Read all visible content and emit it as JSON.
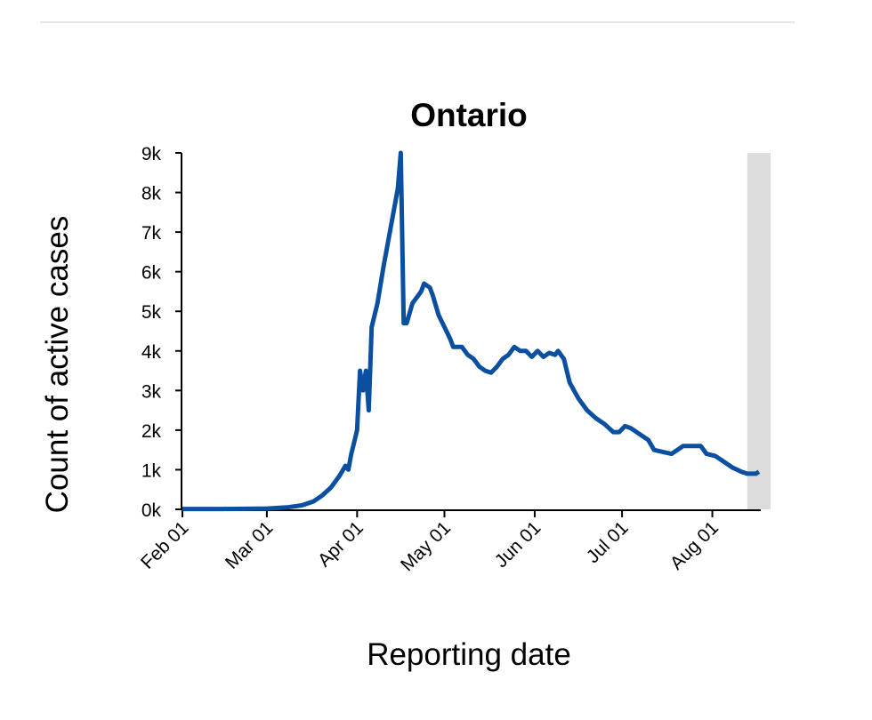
{
  "chart_data": {
    "type": "line",
    "title": "Ontario",
    "x_label": "Reporting date",
    "y_label": "Count of active cases",
    "x": [
      "Feb 01",
      "Feb 15",
      "Mar 01",
      "Mar 08",
      "Mar 13",
      "Mar 17",
      "Mar 20",
      "Mar 23",
      "Mar 26",
      "Mar 28",
      "Mar 29",
      "Mar 30",
      "Mar 31",
      "Apr 01",
      "Apr 02",
      "Apr 03",
      "Apr 04",
      "Apr 05",
      "Apr 06",
      "Apr 08",
      "Apr 10",
      "Apr 13",
      "Apr 15",
      "Apr 16",
      "Apr 17",
      "Apr 18",
      "Apr 20",
      "Apr 23",
      "Apr 24",
      "Apr 26",
      "Apr 27",
      "Apr 29",
      "May 01",
      "May 03",
      "May 04",
      "May 07",
      "May 09",
      "May 11",
      "May 13",
      "May 15",
      "May 17",
      "May 19",
      "May 21",
      "May 23",
      "May 25",
      "May 27",
      "May 29",
      "May 31",
      "Jun 02",
      "Jun 04",
      "Jun 06",
      "Jun 08",
      "Jun 09",
      "Jun 11",
      "Jun 13",
      "Jun 16",
      "Jun 19",
      "Jun 22",
      "Jun 25",
      "Jun 28",
      "Jun 30",
      "Jul 02",
      "Jul 04",
      "Jul 07",
      "Jul 10",
      "Jul 12",
      "Jul 15",
      "Jul 18",
      "Jul 20",
      "Jul 22",
      "Jul 25",
      "Jul 28",
      "Jul 30",
      "Aug 02",
      "Aug 05",
      "Aug 08",
      "Aug 11",
      "Aug 13",
      "Aug 16",
      "Aug 17"
    ],
    "series": [
      {
        "name": "Ontario",
        "color": "#0b4fa0",
        "values": [
          10,
          10,
          20,
          50,
          100,
          200,
          350,
          550,
          850,
          1100,
          1000,
          1400,
          1700,
          2000,
          3500,
          3000,
          3500,
          2500,
          4600,
          5200,
          6100,
          7300,
          8100,
          9000,
          4700,
          4700,
          5200,
          5500,
          5700,
          5600,
          5400,
          4900,
          4600,
          4300,
          4100,
          4100,
          3900,
          3800,
          3600,
          3500,
          3450,
          3600,
          3800,
          3900,
          4100,
          4000,
          4000,
          3850,
          4000,
          3850,
          3950,
          3900,
          4000,
          3800,
          3200,
          2800,
          2500,
          2300,
          2150,
          1950,
          1950,
          2100,
          2050,
          1900,
          1750,
          1500,
          1450,
          1400,
          1500,
          1600,
          1600,
          1600,
          1400,
          1350,
          1200,
          1050,
          950,
          900,
          900,
          950
        ]
      }
    ],
    "shaded_range": [
      "Aug 13",
      "Aug 21"
    ],
    "xlim": [
      "Feb 01",
      "Aug 21"
    ],
    "xticks": [
      "Feb 01",
      "Mar 01",
      "Apr 01",
      "May 01",
      "Jun 01",
      "Jul 01",
      "Aug 01"
    ],
    "ylim": [
      0,
      9000
    ],
    "yticks": [
      {
        "value": 0,
        "label": "0k"
      },
      {
        "value": 1000,
        "label": "1k"
      },
      {
        "value": 2000,
        "label": "2k"
      },
      {
        "value": 3000,
        "label": "3k"
      },
      {
        "value": 4000,
        "label": "4k"
      },
      {
        "value": 5000,
        "label": "5k"
      },
      {
        "value": 6000,
        "label": "6k"
      },
      {
        "value": 7000,
        "label": "7k"
      },
      {
        "value": 8000,
        "label": "8k"
      },
      {
        "value": 9000,
        "label": "9k"
      }
    ]
  }
}
